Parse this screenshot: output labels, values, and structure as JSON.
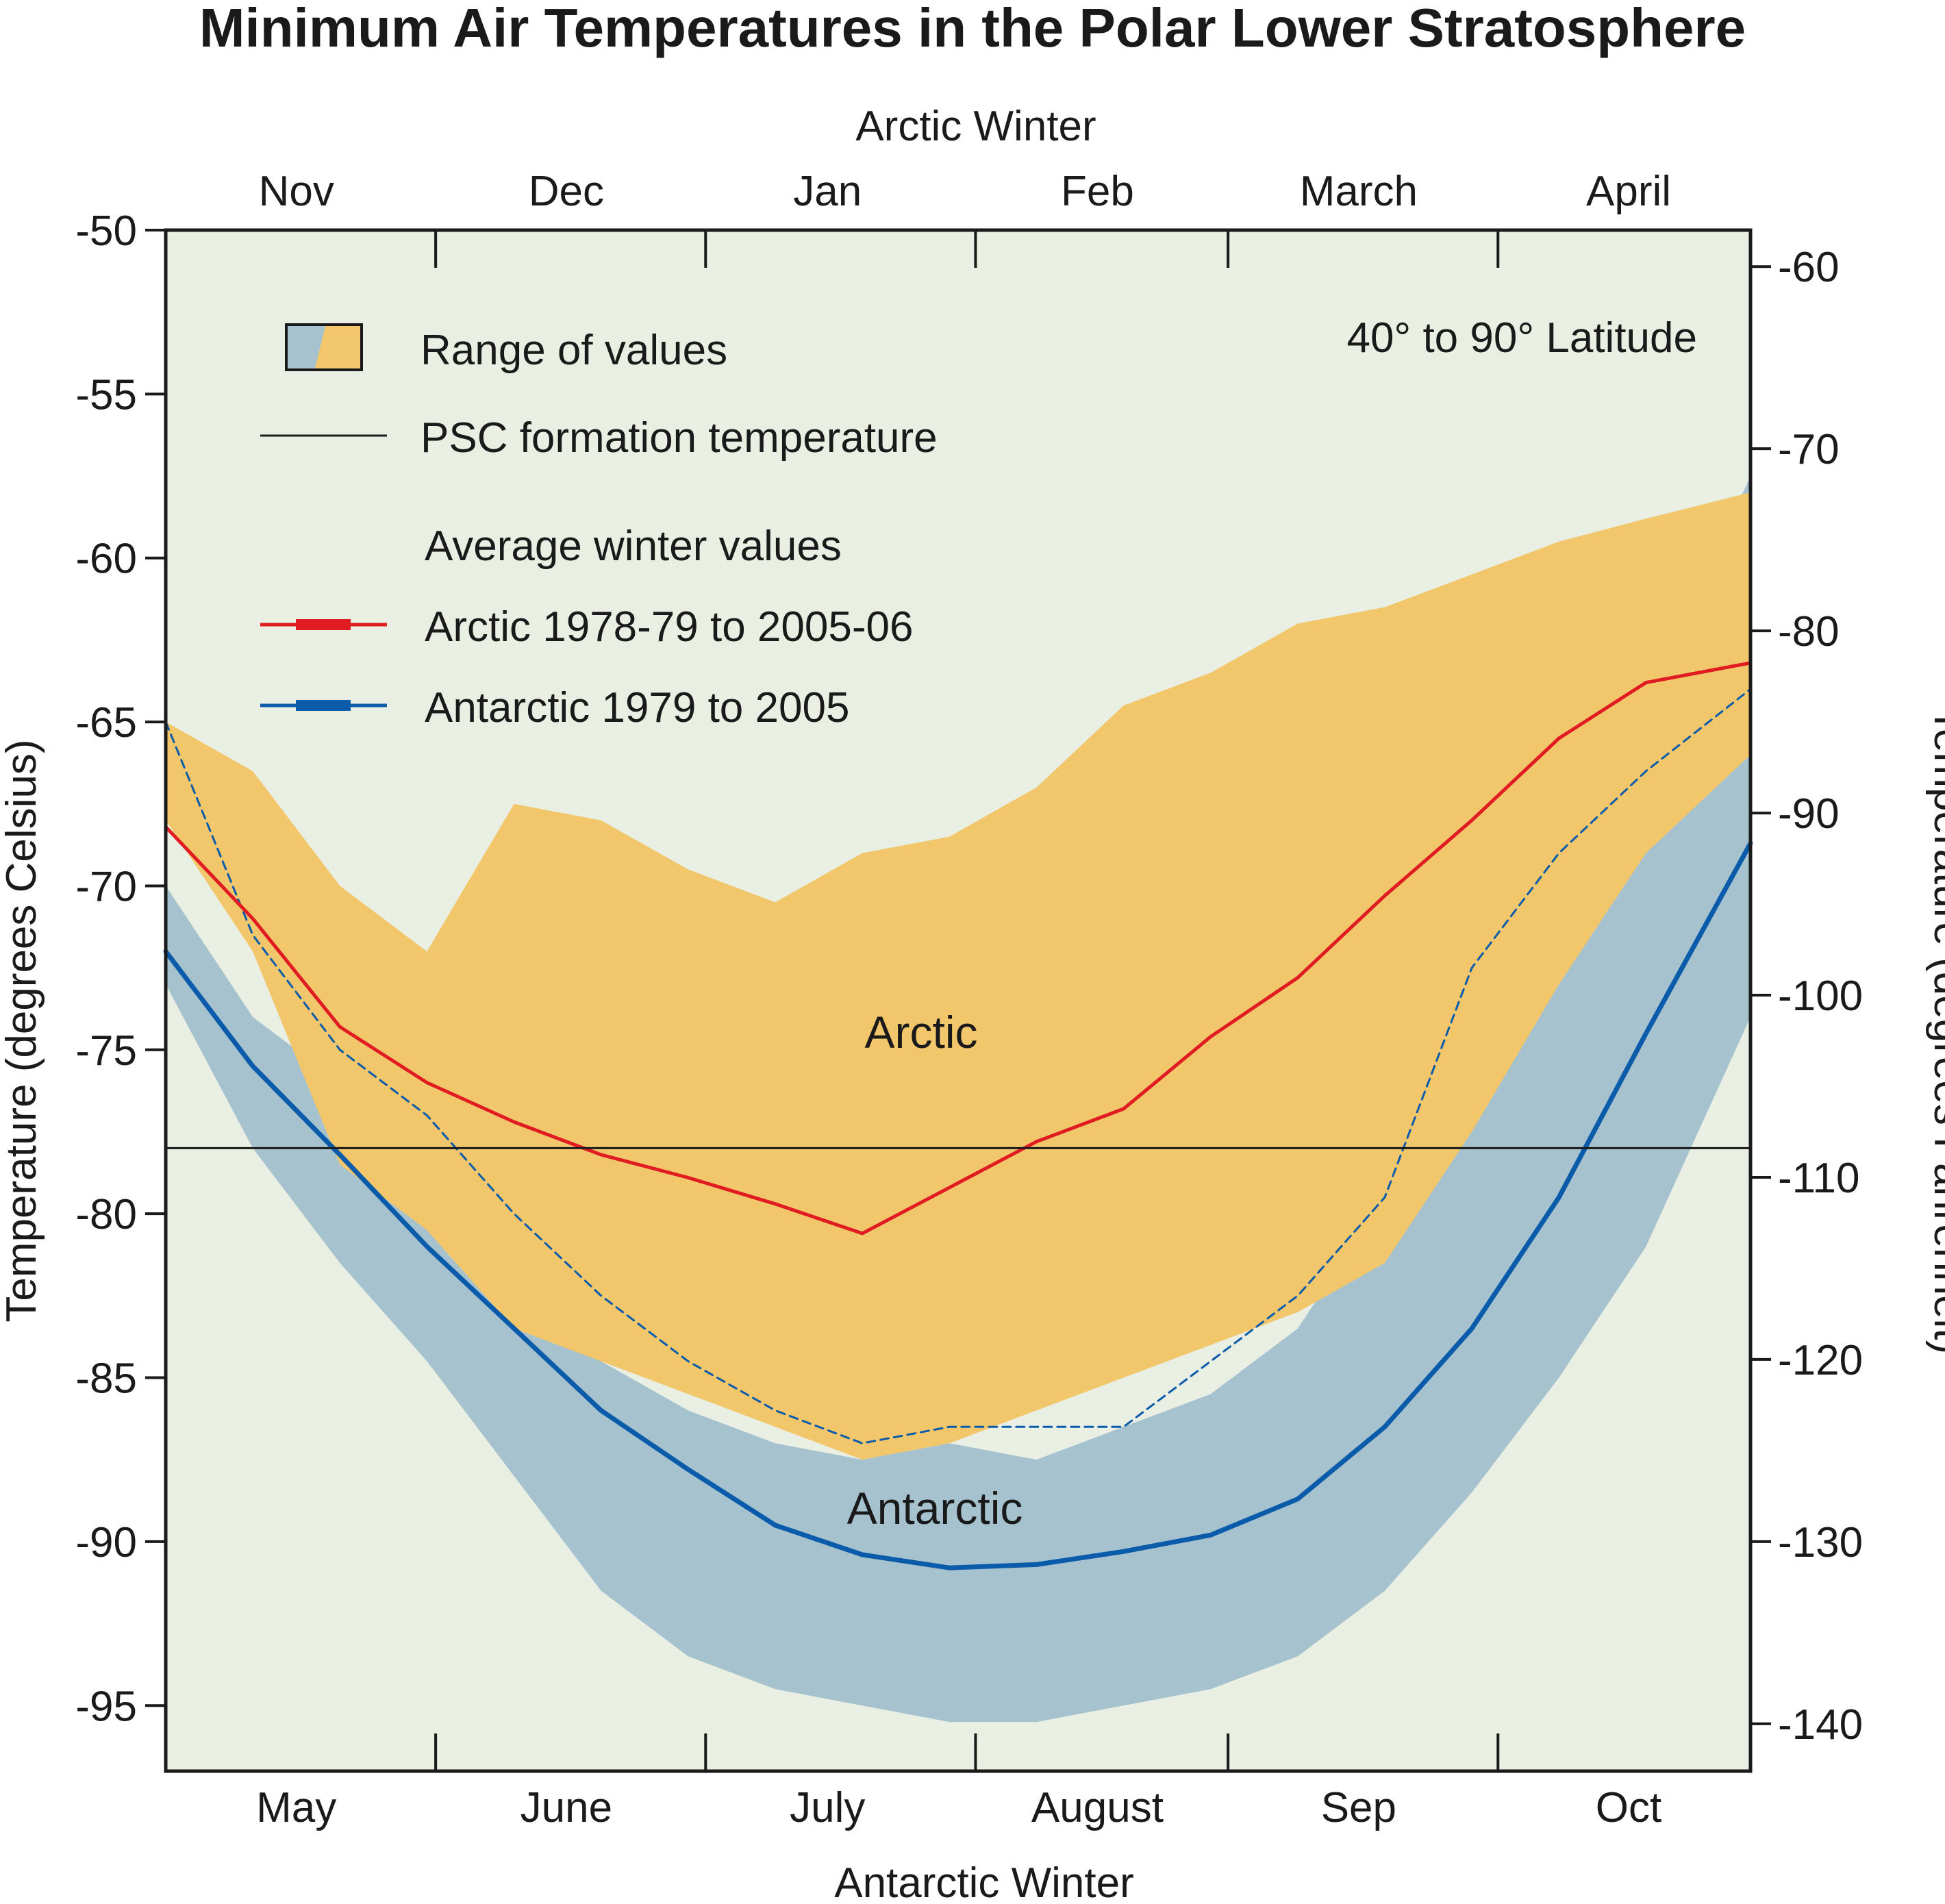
{
  "chart_data": {
    "type": "area",
    "title": "Minimum Air Temperatures in the Polar Lower Stratosphere",
    "top_axis_title": "Arctic Winter",
    "bottom_axis_title": "Antarctic Winter",
    "ylabel_left": "Temperature (degrees Celsius)",
    "ylabel_right": "Temperature (degrees Fahrenheit)",
    "annotation_latitude": "40° to 90° Latitude",
    "grid": false,
    "x_units": "day of winter season",
    "xlim": [
      0,
      182
    ],
    "ylim": [
      -97,
      -50
    ],
    "ylim_fahrenheit": [
      -142.6,
      -58
    ],
    "top_ticks": [
      {
        "label": "Nov",
        "x": 15
      },
      {
        "label": "Dec",
        "x": 46
      },
      {
        "label": "Jan",
        "x": 76
      },
      {
        "label": "Feb",
        "x": 107
      },
      {
        "label": "March",
        "x": 137
      },
      {
        "label": "April",
        "x": 168
      }
    ],
    "bottom_ticks": [
      {
        "label": "May",
        "x": 15
      },
      {
        "label": "June",
        "x": 46
      },
      {
        "label": "July",
        "x": 76
      },
      {
        "label": "August",
        "x": 107
      },
      {
        "label": "Sep",
        "x": 137
      },
      {
        "label": "Oct",
        "x": 168
      }
    ],
    "month_boundaries": [
      31,
      62,
      93,
      122,
      153
    ],
    "left_ticks": [
      -50,
      -55,
      -60,
      -65,
      -70,
      -75,
      -80,
      -85,
      -90,
      -95
    ],
    "right_ticks": [
      -60,
      -70,
      -80,
      -90,
      -100,
      -110,
      -120,
      -130,
      -140
    ],
    "psc_formation_temperature": -78,
    "legend": {
      "range_label": "Range of values",
      "psc_label": "PSC formation temperature",
      "heading": "Average winter values",
      "arctic_label": "Arctic 1978-79 to 2005-06",
      "antarctic_label": "Antarctic 1979 to 2005"
    },
    "series_labels": {
      "arctic": "Arctic",
      "antarctic": "Antarctic"
    },
    "colors": {
      "plot_background": "#e9efe2",
      "arctic_range": "#f2c76c",
      "antarctic_range": "#a6c2cf",
      "arctic_line": "#e11b22",
      "antarctic_line": "#0b5bab",
      "psc_line": "#1a1a1a"
    },
    "x": [
      0,
      10,
      20,
      30,
      40,
      50,
      60,
      70,
      80,
      90,
      100,
      110,
      120,
      130,
      140,
      150,
      160,
      170,
      182
    ],
    "series": [
      {
        "name": "Arctic 1978-79 to 2005-06",
        "key": "arctic_avg",
        "values": [
          -68.2,
          -71.0,
          -74.3,
          -76.0,
          -77.2,
          -78.2,
          -78.9,
          -79.7,
          -80.6,
          -79.2,
          -77.8,
          -76.8,
          -74.6,
          -72.8,
          -70.3,
          -68.0,
          -65.5,
          -63.8,
          -63.2
        ]
      },
      {
        "name": "Arctic range max",
        "key": "arctic_max",
        "values": [
          -65.0,
          -66.5,
          -70.0,
          -72.0,
          -67.5,
          -68.0,
          -69.5,
          -70.5,
          -69.0,
          -68.5,
          -67.0,
          -64.5,
          -63.5,
          -62.0,
          -61.5,
          -60.5,
          -59.5,
          -58.8,
          -58.0
        ]
      },
      {
        "name": "Arctic range min",
        "key": "arctic_min",
        "values": [
          -68.0,
          -72.0,
          -78.5,
          -80.5,
          -83.5,
          -84.5,
          -85.5,
          -86.5,
          -87.5,
          -87.0,
          -86.0,
          -85.0,
          -84.0,
          -83.0,
          -81.5,
          -77.5,
          -73.0,
          -69.0,
          -66.0
        ]
      },
      {
        "name": "Antarctic 1979 to 2005",
        "key": "antarctic_avg",
        "values": [
          -72.0,
          -75.5,
          -78.2,
          -81.0,
          -83.5,
          -86.0,
          -87.8,
          -89.5,
          -90.4,
          -90.8,
          -90.7,
          -90.3,
          -89.8,
          -88.7,
          -86.5,
          -83.5,
          -79.5,
          -74.5,
          -68.7
        ]
      },
      {
        "name": "Antarctic range max",
        "key": "antarctic_max",
        "values": [
          -70.0,
          -74.0,
          -76.0,
          -80.0,
          -82.5,
          -84.5,
          -86.0,
          -87.0,
          -87.5,
          -87.0,
          -87.5,
          -86.5,
          -85.5,
          -83.5,
          -79.5,
          -75.0,
          -70.0,
          -64.5,
          -57.5
        ]
      },
      {
        "name": "Antarctic range min",
        "key": "antarctic_min",
        "values": [
          -73.0,
          -78.0,
          -81.5,
          -84.5,
          -88.0,
          -91.5,
          -93.5,
          -94.5,
          -95.0,
          -95.5,
          -95.5,
          -95.0,
          -94.5,
          -93.5,
          -91.5,
          -88.5,
          -85.0,
          -81.0,
          -74.0
        ]
      },
      {
        "name": "Antarctic dashed trace",
        "key": "antarctic_dashed",
        "values": [
          -65.0,
          -71.5,
          -75.0,
          -77.0,
          -80.0,
          -82.5,
          -84.5,
          -86.0,
          -87.0,
          -86.5,
          -86.5,
          -86.5,
          -84.5,
          -82.5,
          -79.5,
          -72.5,
          -69.0,
          -66.5,
          -64.0
        ]
      }
    ]
  }
}
